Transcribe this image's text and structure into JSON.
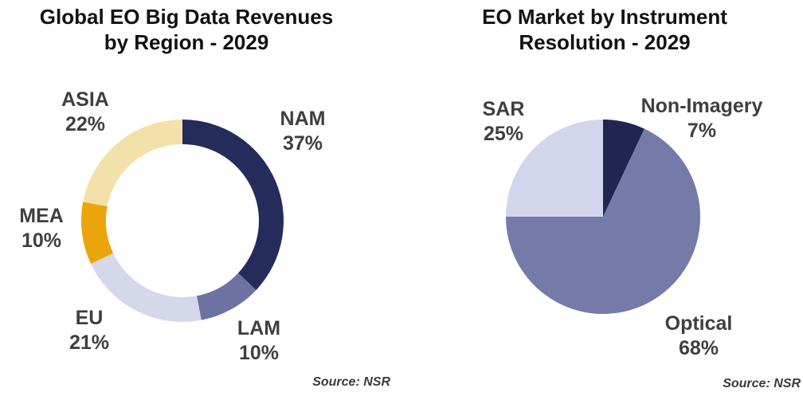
{
  "colors": {
    "background": "#FFFFFF",
    "title_text": "#121212",
    "label_text": "#3F3F3F",
    "source_text": "#3A3A3A"
  },
  "chart_data": [
    {
      "type": "pie",
      "variant": "donut",
      "title": "Global EO Big Data Revenues by Region - 2029",
      "title_lines": [
        "Global EO Big Data Revenues",
        "by Region - 2029"
      ],
      "source": "Source: NSR",
      "units": "percent",
      "start_angle_deg": 0,
      "direction": "clockwise",
      "legend_position": "outside-labels",
      "segments": [
        {
          "label": "NAM",
          "value": 37,
          "pct_text": "37%",
          "color": "#252C5B"
        },
        {
          "label": "LAM",
          "value": 10,
          "pct_text": "10%",
          "color": "#6D72A2"
        },
        {
          "label": "EU",
          "value": 21,
          "pct_text": "21%",
          "color": "#D5D7EA"
        },
        {
          "label": "MEA",
          "value": 10,
          "pct_text": "10%",
          "color": "#EBA40B"
        },
        {
          "label": "ASIA",
          "value": 22,
          "pct_text": "22%",
          "color": "#F3E1AA"
        }
      ]
    },
    {
      "type": "pie",
      "variant": "pie",
      "title": "EO Market by Instrument Resolution - 2029",
      "title_lines": [
        "EO Market by Instrument",
        "Resolution - 2029"
      ],
      "source": "Source: NSR",
      "units": "percent",
      "start_angle_deg": 0,
      "direction": "clockwise",
      "legend_position": "outside-labels",
      "segments": [
        {
          "label": "Non-Imagery",
          "value": 7,
          "pct_text": "7%",
          "color": "#202551"
        },
        {
          "label": "Optical",
          "value": 68,
          "pct_text": "68%",
          "color": "#757AA8"
        },
        {
          "label": "SAR",
          "value": 25,
          "pct_text": "25%",
          "color": "#D2D5EC"
        }
      ]
    }
  ]
}
